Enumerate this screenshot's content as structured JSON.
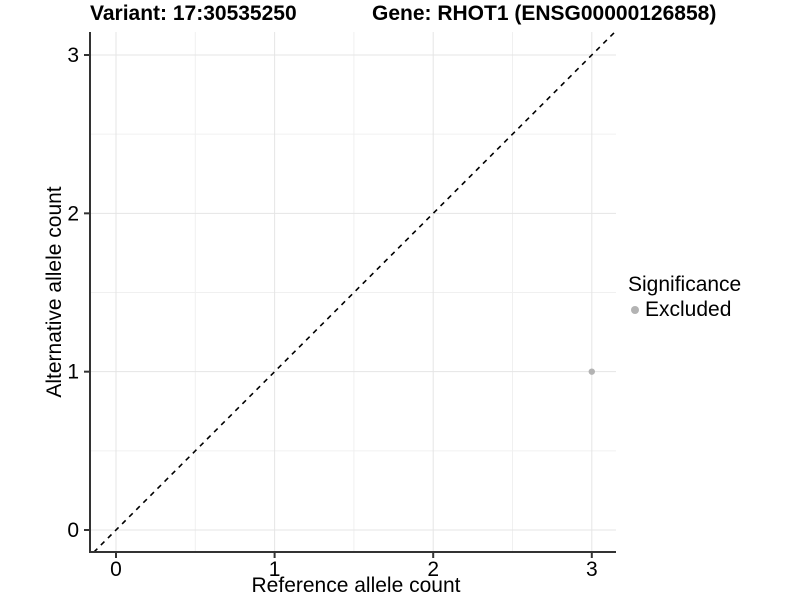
{
  "chart_data": {
    "type": "scatter",
    "title_left": "Variant: 17:30535250",
    "title_right": "Gene: RHOT1 (ENSG00000126858)",
    "xlabel": "Reference allele count",
    "ylabel": "Alternative allele count",
    "xlim": [
      -0.16,
      3.16
    ],
    "ylim": [
      -0.14,
      3.15
    ],
    "x_ticks": [
      0,
      1,
      2,
      3
    ],
    "y_ticks": [
      0,
      1,
      2,
      3
    ],
    "minor_x_ticks": [
      0.5,
      1.5,
      2.5
    ],
    "minor_y_ticks": [
      0.5,
      1.5,
      2.5
    ],
    "grid": true,
    "legend_position": "right",
    "reference_line": {
      "style": "dashed",
      "from": [
        -0.14,
        -0.14
      ],
      "to": [
        3.146,
        3.146
      ],
      "color": "#000000",
      "meaning": "identity line y = x"
    },
    "series": [
      {
        "name": "Excluded",
        "color": "#b3b3b3",
        "points": [
          {
            "x": 3,
            "y": 1
          }
        ]
      }
    ],
    "legend": {
      "title": "Significance",
      "entries": [
        {
          "label": "Excluded",
          "color": "#b3b3b3"
        }
      ]
    },
    "colors": {
      "background": "#ffffff",
      "grid_major": "#e5e5e5",
      "grid_minor": "#f0f0f0",
      "axis": "#333333",
      "point": "#b3b3b3",
      "text": "#000000"
    }
  }
}
